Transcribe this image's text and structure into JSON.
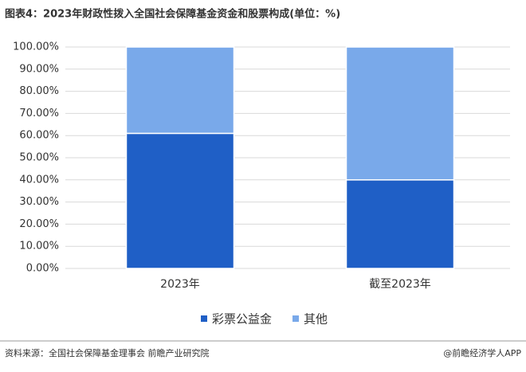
{
  "chart_data": {
    "type": "stacked_bar",
    "title": "图表4：2023年财政性拨入全国社会保障基金资金和股票构成(单位：%)",
    "categories": [
      "2023年",
      "截至2023年"
    ],
    "series": [
      {
        "name": "彩票公益金",
        "color": "#1f5fc6",
        "values": [
          61,
          40
        ]
      },
      {
        "name": "其他",
        "color": "#79a9ea",
        "values": [
          39,
          60
        ]
      }
    ],
    "ylim": [
      0,
      100
    ],
    "yticks": [
      {
        "value": 0,
        "label": "0.00%"
      },
      {
        "value": 10,
        "label": "10.00%"
      },
      {
        "value": 20,
        "label": "20.00%"
      },
      {
        "value": 30,
        "label": "30.00%"
      },
      {
        "value": 40,
        "label": "40.00%"
      },
      {
        "value": 50,
        "label": "50.00%"
      },
      {
        "value": 60,
        "label": "60.00%"
      },
      {
        "value": 70,
        "label": "70.00%"
      },
      {
        "value": 80,
        "label": "80.00%"
      },
      {
        "value": 90,
        "label": "90.00%"
      },
      {
        "value": 100,
        "label": "100.00%"
      }
    ],
    "grid": true,
    "legend": "bottom",
    "source": "资料来源：全国社会保障基金理事会 前瞻产业研究院",
    "footer_right": "@前瞻经济学人APP"
  }
}
